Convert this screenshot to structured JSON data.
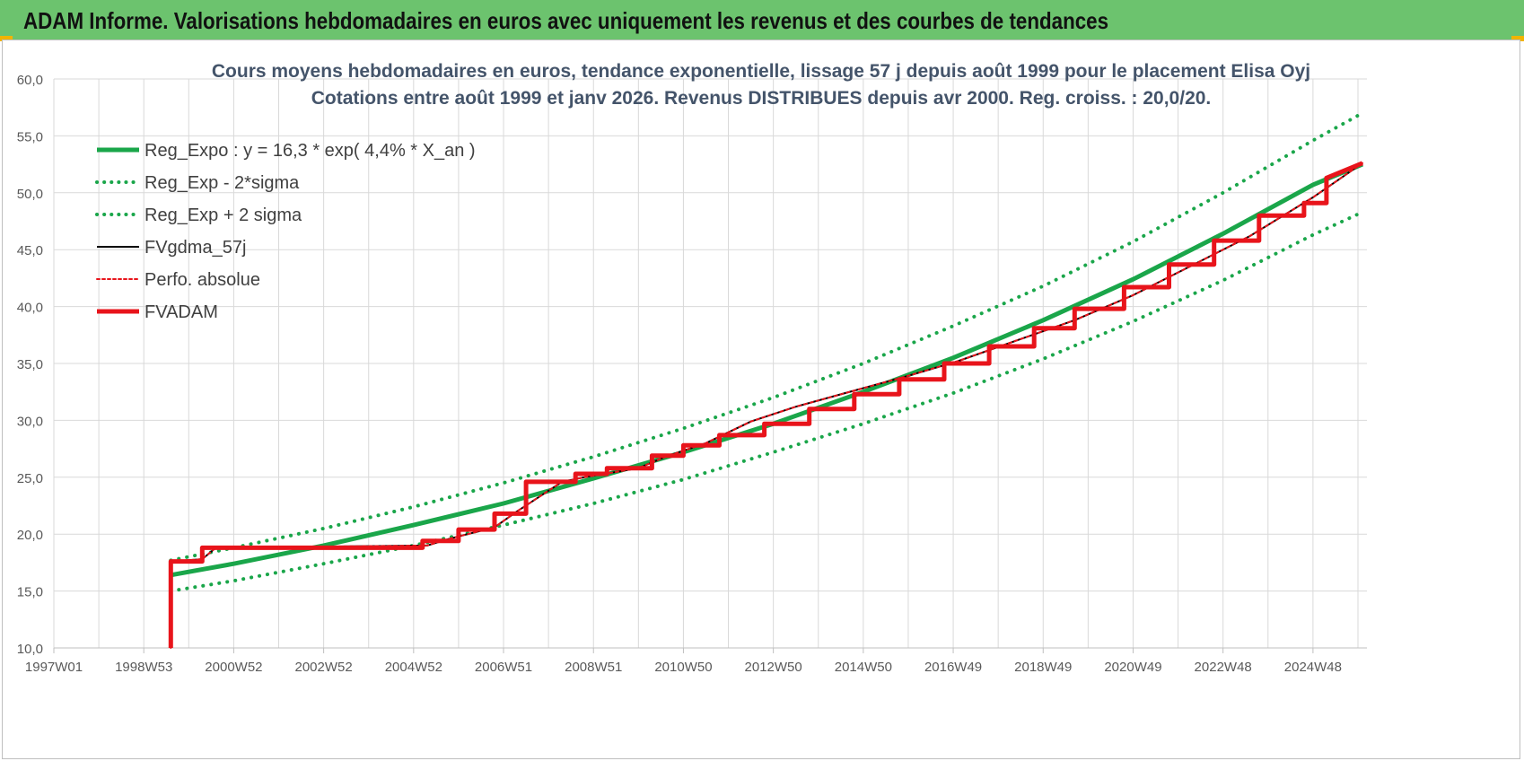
{
  "header": {
    "title": "ADAM Informe. Valorisations hebdomadaires en euros avec uniquement les revenus et des courbes de tendances"
  },
  "colors": {
    "header_bg": "#6cc36e",
    "green": "#1aa64a",
    "red": "#e8141b",
    "black": "#000000"
  },
  "chart_data": {
    "type": "line",
    "title": "Cours moyens hebdomadaires en euros, tendance exponentielle, lissage 57 j depuis août 1999 pour le placement Elisa Oyj",
    "subtitle": "Cotations entre août 1999 et janv 2026.  Revenus DISTRIBUES depuis avr 2000. Reg. croiss. : 20,0/20.",
    "xlabel": "",
    "ylabel": "",
    "ylim": [
      10,
      60
    ],
    "y_ticks": [
      "10,0",
      "15,0",
      "20,0",
      "25,0",
      "30,0",
      "35,0",
      "40,0",
      "45,0",
      "50,0",
      "55,0",
      "60,0"
    ],
    "x_range": [
      1997.0,
      2026.2
    ],
    "x_ticks": [
      {
        "label": "1997W01",
        "x": 1997.0
      },
      {
        "label": "1998W53",
        "x": 1999.0
      },
      {
        "label": "2000W52",
        "x": 2001.0
      },
      {
        "label": "2002W52",
        "x": 2003.0
      },
      {
        "label": "2004W52",
        "x": 2005.0
      },
      {
        "label": "2006W51",
        "x": 2007.0
      },
      {
        "label": "2008W51",
        "x": 2009.0
      },
      {
        "label": "2010W50",
        "x": 2011.0
      },
      {
        "label": "2012W50",
        "x": 2013.0
      },
      {
        "label": "2014W50",
        "x": 2015.0
      },
      {
        "label": "2016W49",
        "x": 2017.0
      },
      {
        "label": "2018W49",
        "x": 2019.0
      },
      {
        "label": "2020W49",
        "x": 2021.0
      },
      {
        "label": "2022W48",
        "x": 2023.0
      },
      {
        "label": "2024W48",
        "x": 2025.0
      }
    ],
    "grid": true,
    "legend_position": "top-left",
    "series": [
      {
        "name": "Reg_Expo : y = 16,3 * exp( 4,4% *  X_an )",
        "style": "solid",
        "color": "#1aa64a",
        "width": 5,
        "x": [
          1999.6,
          2001,
          2003,
          2005,
          2007,
          2009,
          2011,
          2013,
          2015,
          2017,
          2019,
          2021,
          2023,
          2025,
          2026.1
        ],
        "values": [
          16.4,
          17.4,
          19.0,
          20.8,
          22.7,
          24.9,
          27.2,
          29.7,
          32.5,
          35.5,
          38.8,
          42.4,
          46.4,
          50.7,
          52.5
        ]
      },
      {
        "name": "Reg_Exp - 2*sigma",
        "style": "dotted",
        "color": "#1aa64a",
        "width": 4,
        "x": [
          1999.6,
          2001,
          2003,
          2005,
          2007,
          2009,
          2011,
          2013,
          2015,
          2017,
          2019,
          2021,
          2023,
          2025,
          2026.1
        ],
        "values": [
          15.0,
          15.9,
          17.4,
          19.0,
          20.8,
          22.7,
          24.8,
          27.2,
          29.7,
          32.4,
          35.4,
          38.7,
          42.3,
          46.3,
          48.3
        ]
      },
      {
        "name": "Reg_Exp + 2 sigma",
        "style": "dotted",
        "color": "#1aa64a",
        "width": 4,
        "x": [
          1999.6,
          2001,
          2003,
          2005,
          2007,
          2009,
          2011,
          2013,
          2015,
          2017,
          2019,
          2021,
          2023,
          2025,
          2026.1
        ],
        "values": [
          17.7,
          18.8,
          20.5,
          22.4,
          24.5,
          26.8,
          29.3,
          32.0,
          35.0,
          38.3,
          41.8,
          45.7,
          50.0,
          54.6,
          57.0
        ]
      },
      {
        "name": "FVgdma_57j",
        "style": "solid",
        "color": "#000000",
        "width": 2,
        "x": [
          1999.6,
          1999.6,
          2000.3,
          2000.6,
          2005.3,
          2005.8,
          2006.8,
          2007.3,
          2008.3,
          2008.8,
          2010.0,
          2010.6,
          2011.5,
          2012.5,
          2013.5,
          2014.6,
          2015.9,
          2017.1,
          2018.4,
          2019.7,
          2021.0,
          2022.3,
          2023.6,
          2025.0,
          2026.1
        ],
        "values": [
          10.0,
          17.6,
          17.8,
          18.8,
          19.0,
          19.6,
          20.6,
          22.0,
          24.6,
          25.0,
          25.8,
          26.8,
          28.0,
          29.9,
          31.2,
          32.4,
          33.8,
          35.2,
          37.0,
          38.8,
          41.0,
          43.6,
          46.2,
          49.6,
          52.6
        ]
      },
      {
        "name": "Perfo. absolue",
        "style": "dotted",
        "color": "#e8141b",
        "width": 2,
        "x": [
          1999.6,
          1999.6,
          2000.3,
          2000.6,
          2005.3,
          2005.8,
          2006.8,
          2007.3,
          2008.3,
          2008.8,
          2010.0,
          2010.6,
          2011.5,
          2012.5,
          2013.5,
          2014.6,
          2015.9,
          2017.1,
          2018.4,
          2019.7,
          2021.0,
          2022.3,
          2023.6,
          2025.0,
          2026.1
        ],
        "values": [
          10.0,
          17.6,
          17.8,
          18.8,
          19.0,
          19.6,
          20.6,
          22.0,
          24.6,
          25.0,
          25.8,
          26.8,
          28.0,
          29.9,
          31.2,
          32.4,
          33.8,
          35.2,
          37.0,
          38.8,
          41.0,
          43.6,
          46.2,
          49.6,
          52.6
        ]
      },
      {
        "name": "FVADAM",
        "style": "steps",
        "color": "#e8141b",
        "width": 5,
        "x": [
          1999.6,
          1999.6,
          2000.3,
          2000.3,
          2005.2,
          2005.2,
          2006.0,
          2006.0,
          2006.8,
          2006.8,
          2007.5,
          2007.5,
          2008.6,
          2008.6,
          2009.3,
          2009.3,
          2010.3,
          2010.3,
          2011.0,
          2011.0,
          2011.8,
          2011.8,
          2012.8,
          2012.8,
          2013.8,
          2013.8,
          2014.8,
          2014.8,
          2015.8,
          2015.8,
          2016.8,
          2016.8,
          2017.8,
          2017.8,
          2018.8,
          2018.8,
          2019.7,
          2019.7,
          2020.8,
          2020.8,
          2021.8,
          2021.8,
          2022.8,
          2022.8,
          2023.8,
          2023.8,
          2024.8,
          2024.8,
          2025.3,
          2025.3,
          2026.1
        ],
        "values": [
          10.0,
          17.6,
          17.6,
          18.8,
          18.8,
          19.4,
          19.4,
          20.4,
          20.4,
          21.8,
          21.8,
          24.6,
          24.6,
          25.3,
          25.3,
          25.8,
          25.8,
          26.9,
          26.9,
          27.8,
          27.8,
          28.7,
          28.7,
          29.7,
          29.7,
          31.0,
          31.0,
          32.3,
          32.3,
          33.6,
          33.6,
          35.0,
          35.0,
          36.5,
          36.5,
          38.1,
          38.1,
          39.8,
          39.8,
          41.7,
          41.7,
          43.7,
          43.7,
          45.8,
          45.8,
          48.0,
          48.0,
          49.1,
          49.1,
          51.3,
          52.6
        ]
      }
    ]
  }
}
